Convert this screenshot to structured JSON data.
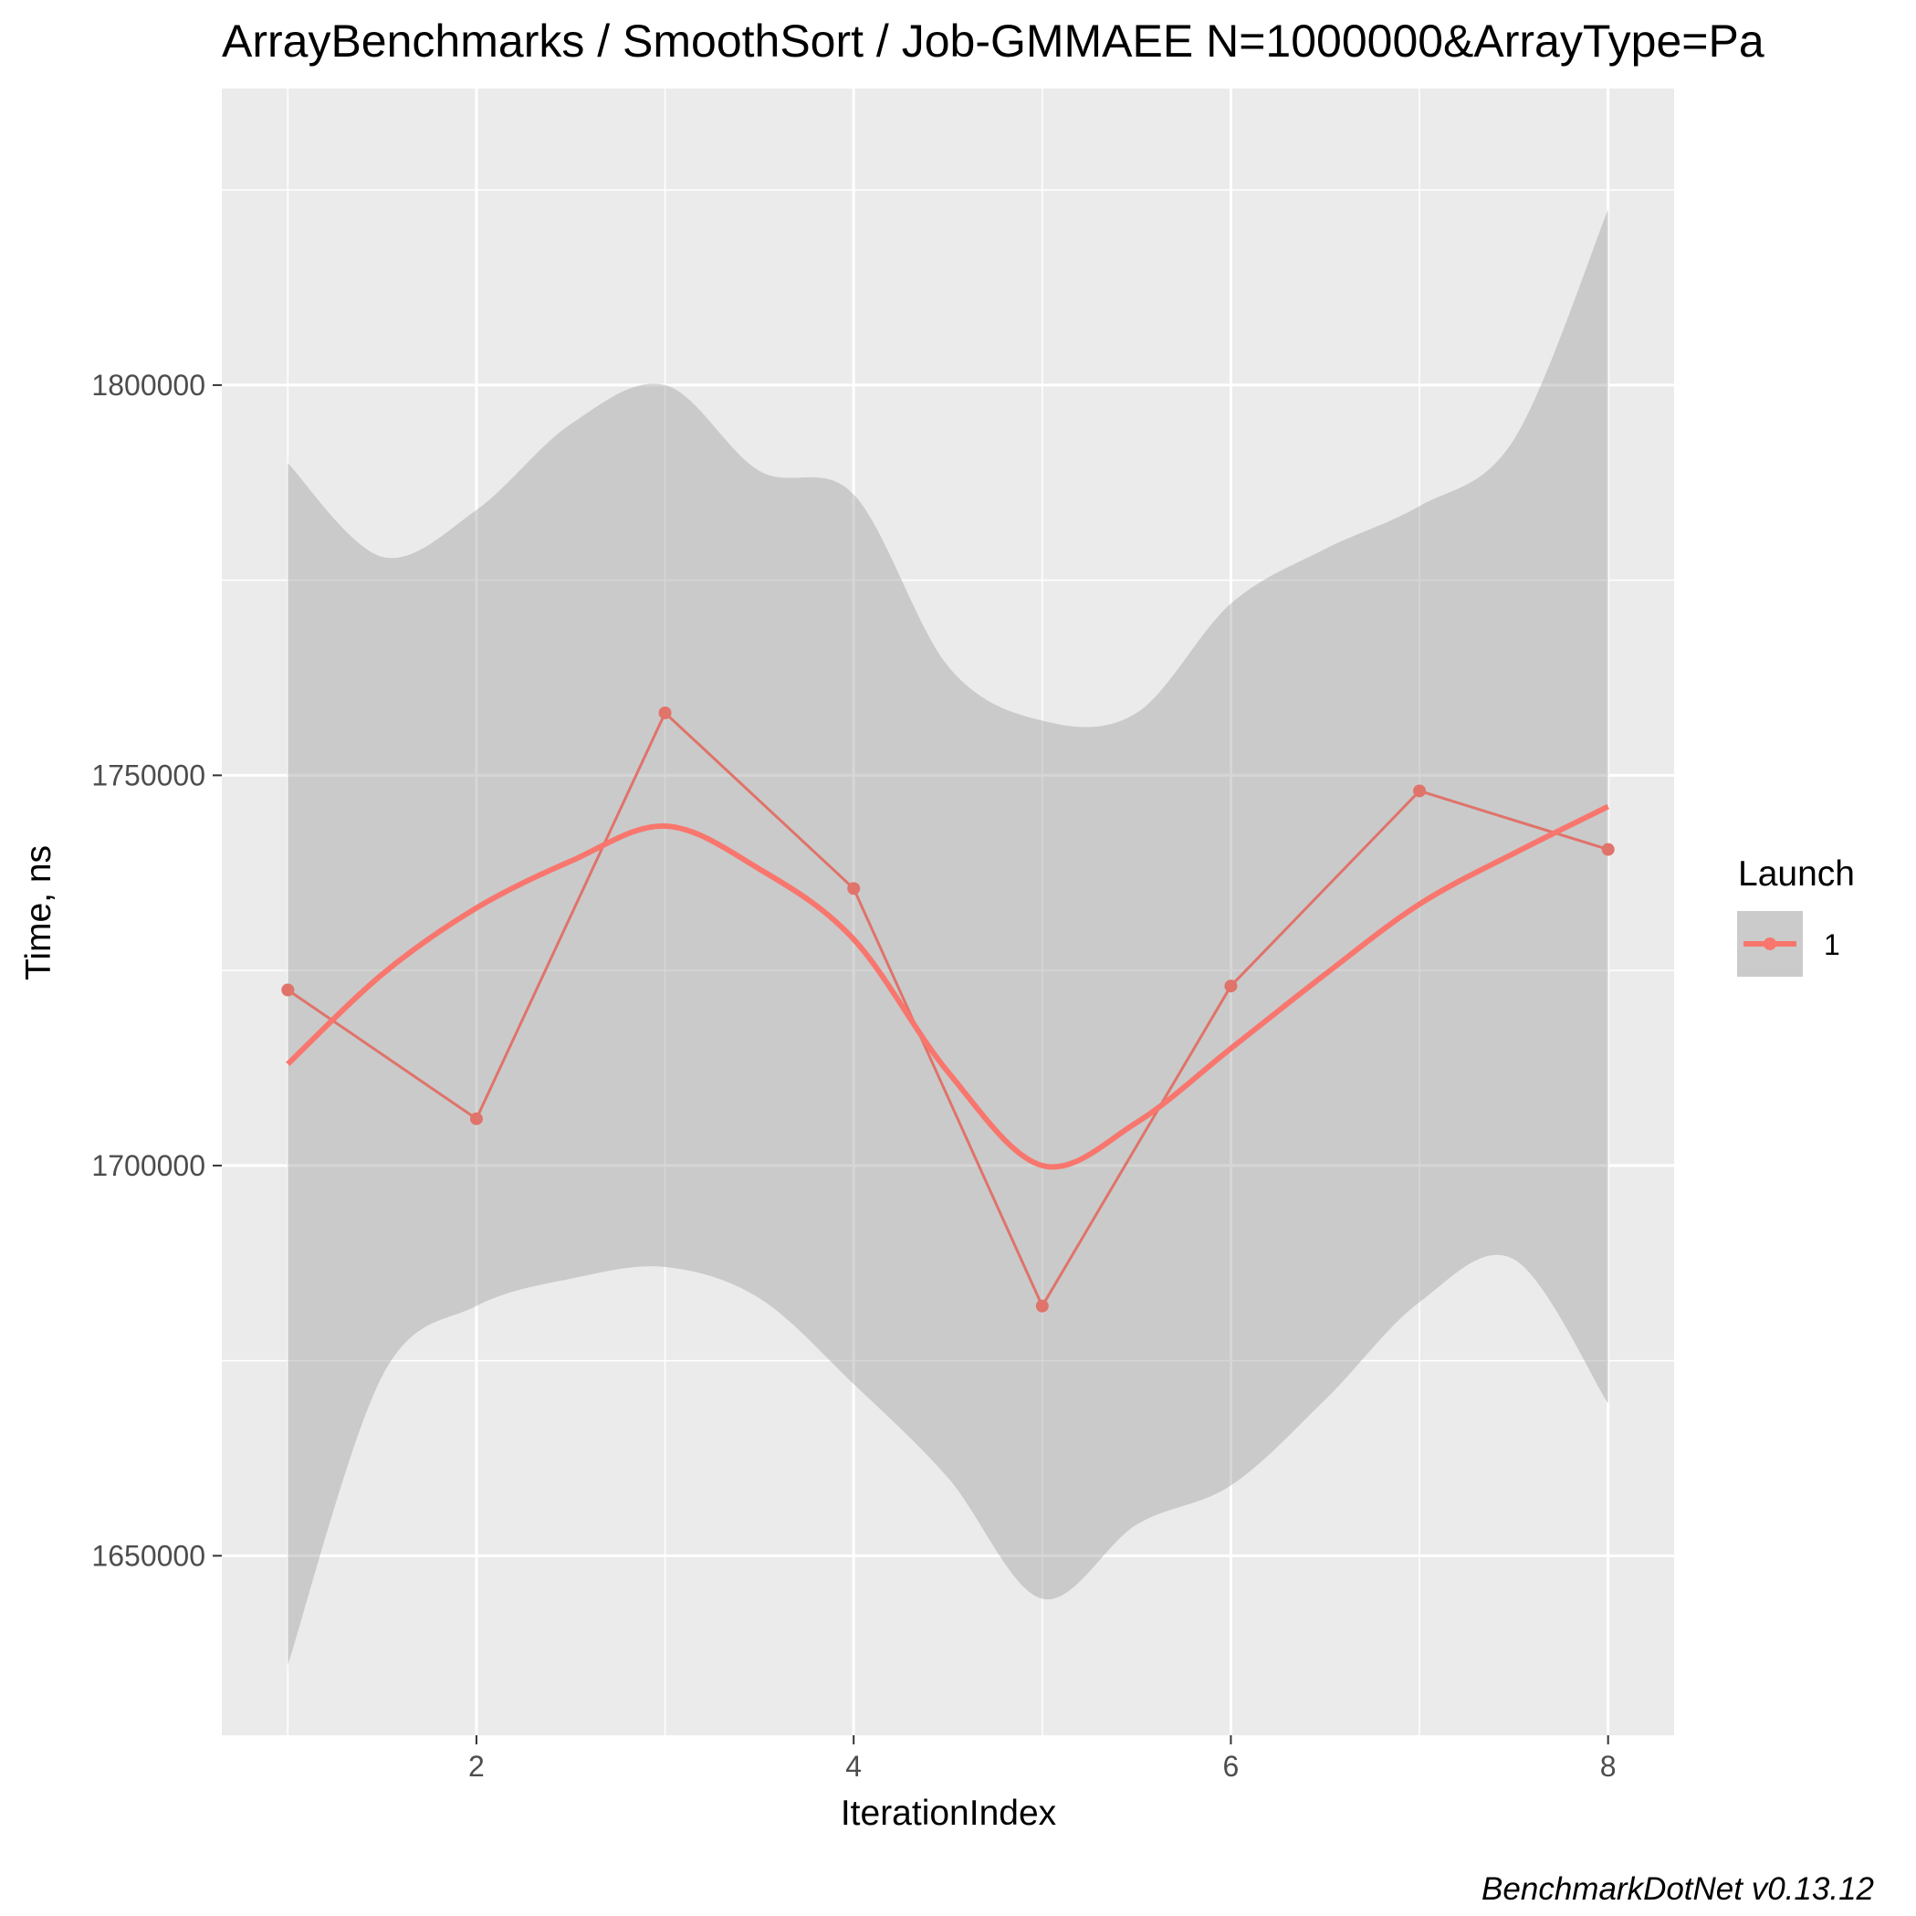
{
  "chart_data": {
    "type": "line",
    "title": "ArrayBenchmarks / SmoothSort / Job-GMMAEE N=1000000&ArrayType=Pa",
    "xlabel": "IterationIndex",
    "ylabel": "Time, ns",
    "caption": "BenchmarkDotNet v0.13.12",
    "xlim": [
      0.65,
      8.35
    ],
    "ylim": [
      1627000,
      1838000
    ],
    "x_ticks": [
      2,
      4,
      6,
      8
    ],
    "x_minor_ticks": [
      1,
      3,
      5,
      7
    ],
    "y_ticks": [
      1650000,
      1700000,
      1750000,
      1800000
    ],
    "y_minor_ticks": [
      1675000,
      1725000,
      1775000,
      1825000
    ],
    "grid": true,
    "legend": {
      "title": "Launch",
      "position": "right",
      "entries": [
        {
          "label": "1",
          "color": "#F8766D"
        }
      ]
    },
    "series": [
      {
        "name": "1",
        "x": [
          1,
          2,
          3,
          4,
          5,
          6,
          7,
          8
        ],
        "values": [
          1722500,
          1706000,
          1758000,
          1735500,
          1682000,
          1723000,
          1748000,
          1740500
        ],
        "line_color": "#E0736A",
        "point_color": "#E0736A"
      }
    ],
    "smooth": {
      "method": "loess",
      "color": "#F8766D",
      "band_color": "#999999",
      "x": [
        1,
        1.5,
        2,
        2.5,
        3,
        3.5,
        4,
        4.5,
        5,
        5.5,
        6,
        6.5,
        7,
        7.5,
        8
      ],
      "fit": [
        1713000,
        1724500,
        1733000,
        1739000,
        1743500,
        1738000,
        1729000,
        1712000,
        1700000,
        1705500,
        1715000,
        1724500,
        1733500,
        1740000,
        1746000
      ],
      "lower": [
        1636000,
        1673000,
        1682000,
        1685500,
        1687000,
        1683000,
        1672000,
        1660000,
        1644500,
        1654000,
        1659000,
        1670000,
        1682500,
        1688000,
        1669500
      ],
      "upper": [
        1790000,
        1778000,
        1784000,
        1795000,
        1800000,
        1789000,
        1786000,
        1764000,
        1757000,
        1758000,
        1772000,
        1779000,
        1784500,
        1793000,
        1822500
      ]
    }
  }
}
